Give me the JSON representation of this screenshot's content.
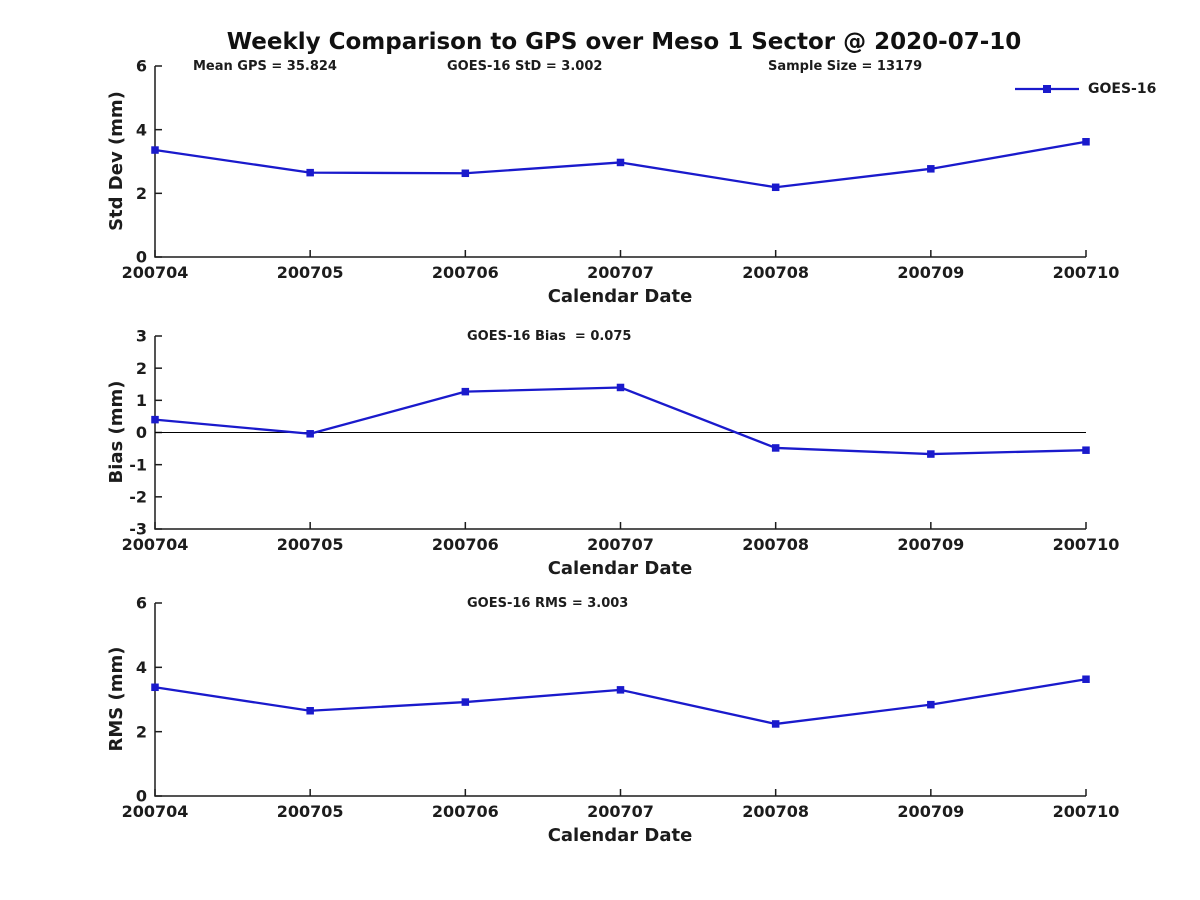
{
  "figure": {
    "title": "Weekly Comparison to GPS over Meso 1 Sector @ 2020-07-10",
    "date_shown": "2020-07-10",
    "line_color": "#1a1acc",
    "axis_color": "#1c1c1c",
    "background_color": "#ffffff"
  },
  "chart_data": [
    {
      "type": "line",
      "title": "",
      "annotations": [
        "Mean GPS = 35.824",
        "GOES-16 StD = 3.002",
        "Sample Size = 13179"
      ],
      "xlabel": "Calendar Date",
      "ylabel": "Std Dev (mm)",
      "categories": [
        "200704",
        "200705",
        "200706",
        "200707",
        "200708",
        "200709",
        "200710"
      ],
      "series": [
        {
          "name": "GOES-16",
          "marker": "square",
          "values": [
            3.36,
            2.65,
            2.63,
            2.97,
            2.19,
            2.77,
            3.62
          ]
        }
      ],
      "ylim": [
        0,
        6
      ],
      "yticks": [
        0,
        2,
        4,
        6
      ],
      "grid": false,
      "legend": {
        "label": "GOES-16",
        "position": "upper right"
      }
    },
    {
      "type": "line",
      "title": "GOES-16 Bias  = 0.075",
      "xlabel": "Calendar Date",
      "ylabel": "Bias (mm)",
      "categories": [
        "200704",
        "200705",
        "200706",
        "200707",
        "200708",
        "200709",
        "200710"
      ],
      "series": [
        {
          "name": "GOES-16",
          "marker": "square",
          "values": [
            0.4,
            -0.04,
            1.27,
            1.4,
            -0.48,
            -0.67,
            -0.55
          ]
        }
      ],
      "ylim": [
        -3,
        3
      ],
      "yticks": [
        -3,
        -2,
        -1,
        0,
        1,
        2,
        3
      ],
      "zero_line": true,
      "grid": false
    },
    {
      "type": "line",
      "title": "GOES-16 RMS = 3.003",
      "xlabel": "Calendar Date",
      "ylabel": "RMS (mm)",
      "categories": [
        "200704",
        "200705",
        "200706",
        "200707",
        "200708",
        "200709",
        "200710"
      ],
      "series": [
        {
          "name": "GOES-16",
          "marker": "square",
          "values": [
            3.38,
            2.65,
            2.92,
            3.3,
            2.24,
            2.84,
            3.63
          ]
        }
      ],
      "ylim": [
        0,
        6
      ],
      "yticks": [
        0,
        2,
        4,
        6
      ],
      "grid": false
    }
  ]
}
